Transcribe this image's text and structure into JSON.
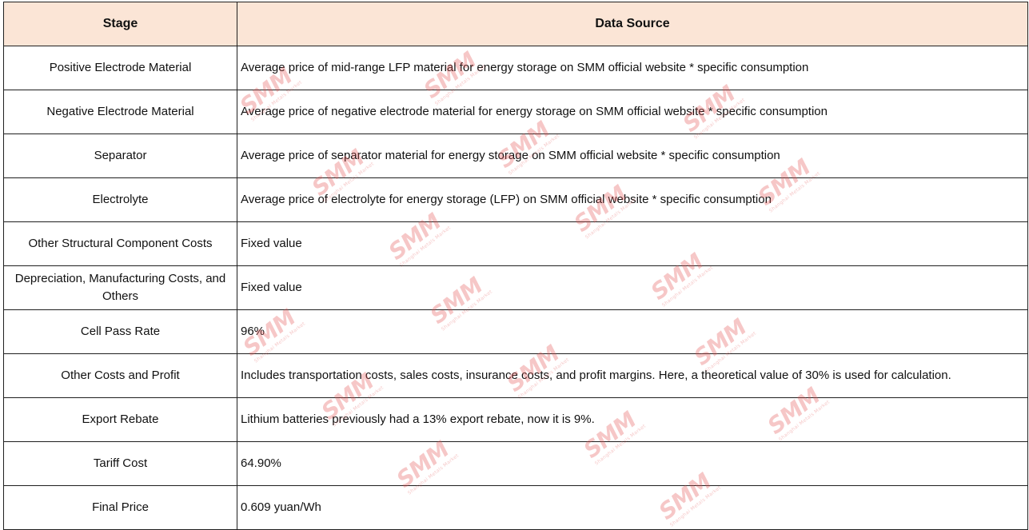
{
  "table": {
    "headers": {
      "stage": "Stage",
      "source": "Data Source"
    },
    "rows": [
      {
        "stage": "Positive Electrode Material",
        "source": "Average price of mid-range LFP material for energy storage on SMM official website * specific consumption"
      },
      {
        "stage": "Negative Electrode Material",
        "source": "Average price of negative electrode material for energy storage on SMM official website * specific consumption"
      },
      {
        "stage": "Separator",
        "source": "Average price of separator material for energy storage on SMM official website * specific consumption"
      },
      {
        "stage": "Electrolyte",
        "source": "Average price of electrolyte for energy storage (LFP) on SMM official website * specific consumption"
      },
      {
        "stage": "Other Structural Component Costs",
        "source": "Fixed value"
      },
      {
        "stage": "Depreciation, Manufacturing Costs, and Others",
        "source": "Fixed value"
      },
      {
        "stage": "Cell Pass Rate",
        "source": "96%"
      },
      {
        "stage": "Other Costs and Profit",
        "source": "Includes transportation costs, sales costs, insurance costs, and profit margins. Here, a theoretical value of 30% is used for calculation."
      },
      {
        "stage": "Export Rebate",
        "source": "Lithium batteries previously had a 13% export rebate, now it is 9%."
      },
      {
        "stage": "Tariff Cost",
        "source": "64.90%"
      },
      {
        "stage": "Final Price",
        "source": "0.609 yuan/Wh"
      }
    ]
  },
  "watermark": {
    "logo": "SMM",
    "subtitle": "Shanghai Metals Market",
    "color": "#e25252"
  },
  "colors": {
    "header_bg": "#fbe5d6",
    "border": "#1f1f1f"
  }
}
